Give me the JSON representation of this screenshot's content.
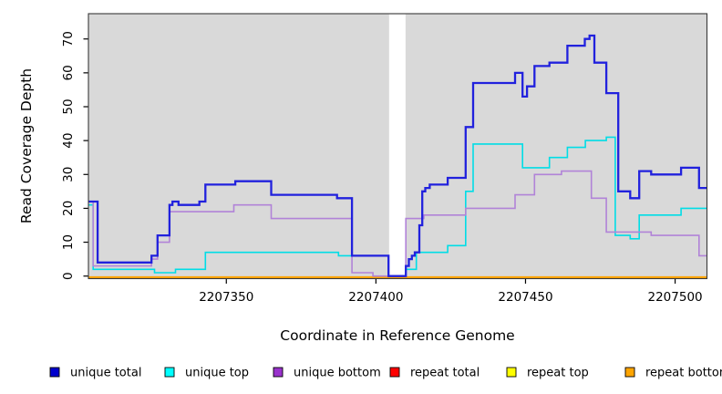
{
  "chart_data": {
    "type": "line",
    "step": true,
    "title": "",
    "xlabel": "Coordinate in Reference Genome",
    "ylabel": "Read Coverage Depth",
    "xlim": [
      2207304,
      2207510
    ],
    "ylim": [
      0,
      71
    ],
    "x_ticks": [
      2207350,
      2207400,
      2207450,
      2207500
    ],
    "y_ticks": [
      0,
      10,
      20,
      30,
      40,
      50,
      60,
      70
    ],
    "grid": false,
    "plot_background": "#d9d9d9",
    "masked_region": {
      "x_start": 2207404.4,
      "x_end": 2207409.9,
      "color": "#ffffff"
    },
    "legend_position": "bottom",
    "series": [
      {
        "name": "unique total",
        "color": "#2121dd",
        "legend_color": "#0000cd",
        "width": 2.3,
        "points": [
          [
            2207304,
            22
          ],
          [
            2207307,
            4
          ],
          [
            2207325,
            6
          ],
          [
            2207327,
            12
          ],
          [
            2207331,
            21
          ],
          [
            2207332,
            22
          ],
          [
            2207334,
            21
          ],
          [
            2207341,
            22
          ],
          [
            2207343,
            27
          ],
          [
            2207353,
            28
          ],
          [
            2207365,
            24
          ],
          [
            2207387,
            23
          ],
          [
            2207392,
            6
          ],
          [
            2207404.2,
            0
          ],
          [
            2207410,
            3
          ],
          [
            2207411,
            5
          ],
          [
            2207412,
            6
          ],
          [
            2207413,
            7
          ],
          [
            2207414.5,
            15
          ],
          [
            2207415.5,
            25
          ],
          [
            2207416.5,
            26
          ],
          [
            2207418,
            27
          ],
          [
            2207424,
            29
          ],
          [
            2207430,
            44
          ],
          [
            2207432.5,
            57
          ],
          [
            2207446.5,
            60
          ],
          [
            2207449,
            53
          ],
          [
            2207450.5,
            56
          ],
          [
            2207453,
            62
          ],
          [
            2207458,
            63
          ],
          [
            2207464,
            68
          ],
          [
            2207469.8,
            70
          ],
          [
            2207471.4,
            71
          ],
          [
            2207473,
            63
          ],
          [
            2207477,
            54
          ],
          [
            2207481,
            25
          ],
          [
            2207485,
            23
          ],
          [
            2207488,
            31
          ],
          [
            2207492,
            30
          ],
          [
            2207502,
            32
          ],
          [
            2207508,
            26
          ],
          [
            2207510,
            26
          ]
        ]
      },
      {
        "name": "unique top",
        "color": "#00dde6",
        "legend_color": "#00ffff",
        "width": 1.6,
        "points": [
          [
            2207304,
            21
          ],
          [
            2207305.5,
            2
          ],
          [
            2207326,
            1
          ],
          [
            2207333,
            2
          ],
          [
            2207343,
            7
          ],
          [
            2207387.5,
            6
          ],
          [
            2207404.2,
            0
          ],
          [
            2207410,
            2
          ],
          [
            2207413.5,
            7
          ],
          [
            2207424,
            9
          ],
          [
            2207430,
            25
          ],
          [
            2207432.5,
            39
          ],
          [
            2207449,
            32
          ],
          [
            2207458,
            35
          ],
          [
            2207464,
            38
          ],
          [
            2207470,
            40
          ],
          [
            2207477,
            41
          ],
          [
            2207480,
            12
          ],
          [
            2207485,
            11
          ],
          [
            2207488,
            18
          ],
          [
            2207502,
            20
          ],
          [
            2207510,
            20
          ]
        ]
      },
      {
        "name": "unique bottom",
        "color": "#b183d8",
        "legend_color": "#9932cc",
        "width": 1.6,
        "points": [
          [
            2207304,
            22
          ],
          [
            2207305.5,
            3
          ],
          [
            2207325,
            5
          ],
          [
            2207327,
            10
          ],
          [
            2207331,
            19
          ],
          [
            2207352.5,
            21
          ],
          [
            2207365,
            17
          ],
          [
            2207392,
            1
          ],
          [
            2207399,
            0
          ],
          [
            2207410,
            17
          ],
          [
            2207416,
            18
          ],
          [
            2207430,
            20
          ],
          [
            2207446.5,
            24
          ],
          [
            2207453,
            30
          ],
          [
            2207462,
            31
          ],
          [
            2207472,
            23
          ],
          [
            2207477,
            13
          ],
          [
            2207492,
            12
          ],
          [
            2207508,
            6
          ],
          [
            2207510,
            6
          ]
        ]
      },
      {
        "name": "repeat total",
        "color": "#dd0000",
        "legend_color": "#ff0000",
        "width": 2,
        "points": [
          [
            2207304,
            0
          ],
          [
            2207510,
            0
          ]
        ]
      },
      {
        "name": "repeat top",
        "color": "#ffff00",
        "legend_color": "#ffff00",
        "width": 2,
        "points": [
          [
            2207304,
            0
          ],
          [
            2207510,
            0
          ]
        ]
      },
      {
        "name": "repeat bottom",
        "color": "#ffa500",
        "legend_color": "#ffa500",
        "width": 2.2,
        "points": [
          [
            2207304,
            0
          ],
          [
            2207510,
            0
          ]
        ]
      }
    ]
  }
}
